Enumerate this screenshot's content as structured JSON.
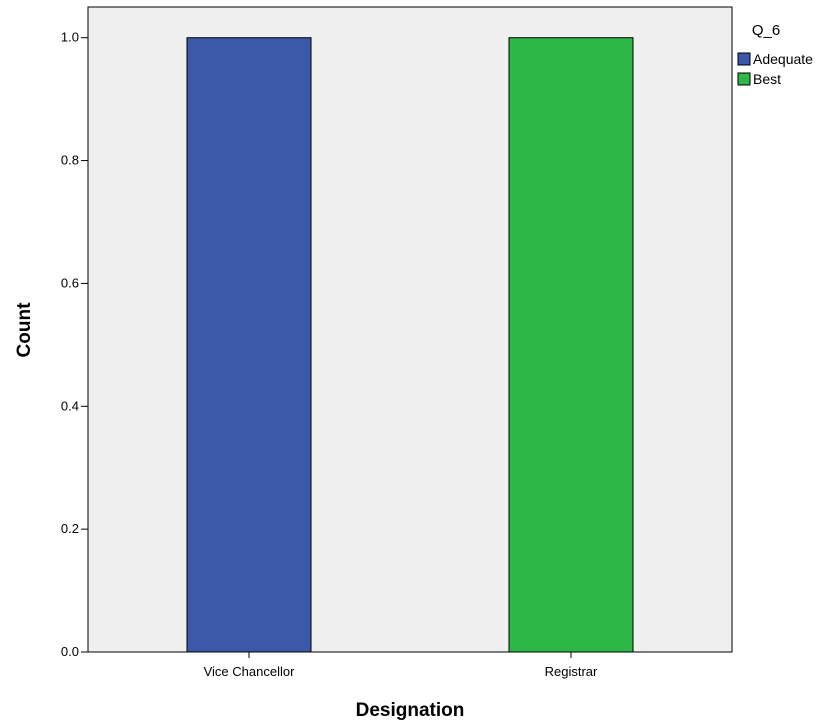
{
  "chart_data": {
    "type": "bar",
    "xlabel": "Designation",
    "ylabel": "Count",
    "categories": [
      "Vice Chancellor",
      "Registrar"
    ],
    "series": [
      {
        "name": "Adequate",
        "color": "#3c58a8",
        "values": [
          1,
          0
        ]
      },
      {
        "name": "Best",
        "color": "#2eb848",
        "values": [
          0,
          1
        ]
      }
    ],
    "ylim": [
      0,
      1.05
    ],
    "yticks": [
      "0.0",
      "0.2",
      "0.4",
      "0.6",
      "0.8",
      "1.0"
    ],
    "grid": false,
    "legend": {
      "title": "Q_6",
      "position": "top-right"
    },
    "plot_background": "#f0f0f0"
  }
}
